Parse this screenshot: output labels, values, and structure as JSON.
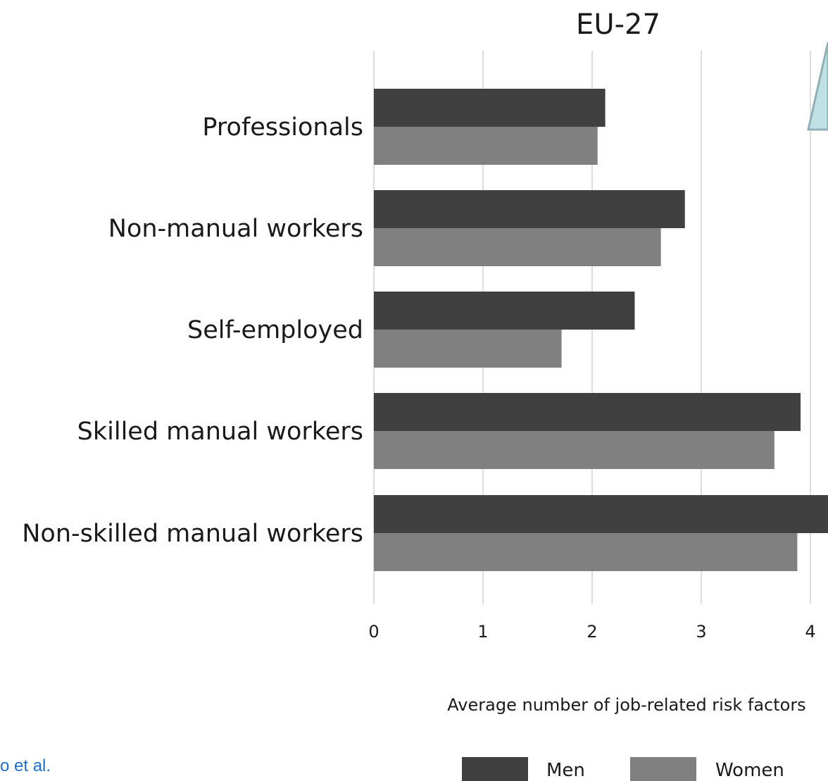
{
  "citation": "o et al.",
  "colors": {
    "men": "#404040",
    "women": "#808080",
    "grid": "#dddddd",
    "callout_fill": "#bfe1e4",
    "callout_stroke": "#8fb0b5"
  },
  "chart_data": {
    "type": "bar",
    "orientation": "horizontal",
    "title": "EU-27",
    "xlabel": "Average number of job-related risk factors",
    "ylabel": "",
    "categories": [
      "Professionals",
      "Non-manual workers",
      "Self-employed",
      "Skilled manual workers",
      "Non-skilled manual workers"
    ],
    "series": [
      {
        "name": "Men",
        "values": [
          2.12,
          2.85,
          2.39,
          3.91,
          4.2
        ]
      },
      {
        "name": "Women",
        "values": [
          2.05,
          2.63,
          1.72,
          3.67,
          3.88
        ]
      }
    ],
    "xticks": [
      "0",
      "1",
      "2",
      "3",
      "4"
    ],
    "xlim": [
      0,
      4.2
    ],
    "grid": true,
    "legend_position": "bottom"
  }
}
